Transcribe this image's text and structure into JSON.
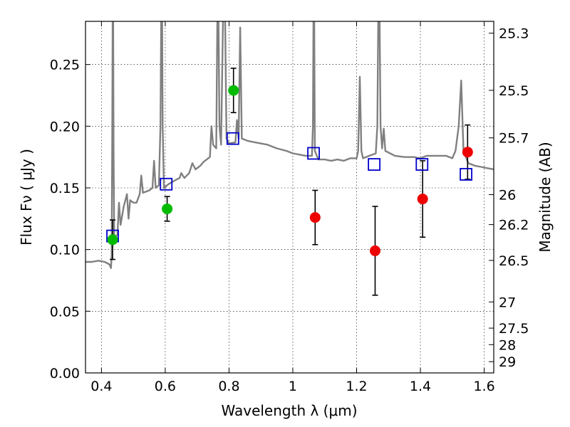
{
  "chart_data": {
    "type": "scatter",
    "xlabel": "Wavelength  λ (μm)",
    "ylabel": "Flux  Fν ( μJy )",
    "ylabel_right": "Magnitude (AB)",
    "xlim": [
      0.35,
      1.63
    ],
    "ylim": [
      0,
      0.285
    ],
    "x_ticks": [
      {
        "value": 0.4,
        "label": "0.4"
      },
      {
        "value": 0.6,
        "label": "0.6"
      },
      {
        "value": 0.8,
        "label": "0.8"
      },
      {
        "value": 1.0,
        "label": "1"
      },
      {
        "value": 1.2,
        "label": "1.2"
      },
      {
        "value": 1.4,
        "label": "1.4"
      },
      {
        "value": 1.6,
        "label": "1.6"
      }
    ],
    "y_ticks": [
      {
        "value": 0.0,
        "label": "0.00"
      },
      {
        "value": 0.05,
        "label": "0.05"
      },
      {
        "value": 0.1,
        "label": "0.10"
      },
      {
        "value": 0.15,
        "label": "0.15"
      },
      {
        "value": 0.2,
        "label": "0.20"
      },
      {
        "value": 0.25,
        "label": "0.25"
      }
    ],
    "right_ticks": [
      {
        "mag": 25.3,
        "label": "25.3"
      },
      {
        "mag": 25.5,
        "label": "25.5"
      },
      {
        "mag": 25.7,
        "label": "25.7"
      },
      {
        "mag": 26.0,
        "label": "26"
      },
      {
        "mag": 26.2,
        "label": "26.2"
      },
      {
        "mag": 26.5,
        "label": "26.5"
      },
      {
        "mag": 27.0,
        "label": "27"
      },
      {
        "mag": 27.5,
        "label": "27.5"
      },
      {
        "mag": 28.0,
        "label": "28"
      },
      {
        "mag": 29.0,
        "label": "29"
      }
    ],
    "grid": true,
    "colors": {
      "spectrum": "#808080",
      "model": "#0000cc",
      "green": "#00bb00",
      "red": "#ee0000",
      "errorbar": "#000000"
    },
    "model_points": [
      {
        "x": 0.435,
        "y": 0.111
      },
      {
        "x": 0.603,
        "y": 0.153
      },
      {
        "x": 0.812,
        "y": 0.19
      },
      {
        "x": 1.065,
        "y": 0.178
      },
      {
        "x": 1.255,
        "y": 0.169
      },
      {
        "x": 1.405,
        "y": 0.169
      },
      {
        "x": 1.543,
        "y": 0.161
      }
    ],
    "green_points": [
      {
        "x": 0.435,
        "y": 0.108,
        "err": 0.016
      },
      {
        "x": 0.606,
        "y": 0.133,
        "err": 0.01
      },
      {
        "x": 0.814,
        "y": 0.229,
        "err": 0.018
      }
    ],
    "red_points": [
      {
        "x": 1.07,
        "y": 0.126,
        "err": 0.022
      },
      {
        "x": 1.258,
        "y": 0.099,
        "err": 0.036
      },
      {
        "x": 1.407,
        "y": 0.141,
        "err": 0.031
      },
      {
        "x": 1.548,
        "y": 0.179,
        "err": 0.022
      }
    ],
    "spectrum": [
      [
        0.35,
        0.09
      ],
      [
        0.37,
        0.09
      ],
      [
        0.39,
        0.091
      ],
      [
        0.41,
        0.09
      ],
      [
        0.425,
        0.088
      ],
      [
        0.43,
        0.085
      ],
      [
        0.432,
        0.095
      ],
      [
        0.434,
        0.2
      ],
      [
        0.436,
        0.35
      ],
      [
        0.438,
        0.18
      ],
      [
        0.44,
        0.11
      ],
      [
        0.45,
        0.112
      ],
      [
        0.455,
        0.138
      ],
      [
        0.46,
        0.12
      ],
      [
        0.47,
        0.135
      ],
      [
        0.48,
        0.145
      ],
      [
        0.485,
        0.125
      ],
      [
        0.49,
        0.14
      ],
      [
        0.5,
        0.138
      ],
      [
        0.51,
        0.138
      ],
      [
        0.52,
        0.145
      ],
      [
        0.525,
        0.16
      ],
      [
        0.53,
        0.146
      ],
      [
        0.55,
        0.148
      ],
      [
        0.56,
        0.15
      ],
      [
        0.565,
        0.172
      ],
      [
        0.57,
        0.15
      ],
      [
        0.58,
        0.152
      ],
      [
        0.585,
        0.2
      ],
      [
        0.589,
        0.35
      ],
      [
        0.592,
        0.2
      ],
      [
        0.596,
        0.15
      ],
      [
        0.61,
        0.153
      ],
      [
        0.63,
        0.156
      ],
      [
        0.645,
        0.158
      ],
      [
        0.65,
        0.162
      ],
      [
        0.66,
        0.158
      ],
      [
        0.675,
        0.162
      ],
      [
        0.685,
        0.17
      ],
      [
        0.695,
        0.165
      ],
      [
        0.71,
        0.168
      ],
      [
        0.72,
        0.171
      ],
      [
        0.73,
        0.173
      ],
      [
        0.74,
        0.175
      ],
      [
        0.745,
        0.2
      ],
      [
        0.75,
        0.185
      ],
      [
        0.76,
        0.182
      ],
      [
        0.765,
        0.34
      ],
      [
        0.77,
        0.2
      ],
      [
        0.775,
        0.185
      ],
      [
        0.785,
        0.35
      ],
      [
        0.792,
        0.19
      ],
      [
        0.8,
        0.186
      ],
      [
        0.82,
        0.187
      ],
      [
        0.825,
        0.205
      ],
      [
        0.83,
        0.19
      ],
      [
        0.835,
        0.28
      ],
      [
        0.84,
        0.19
      ],
      [
        0.86,
        0.188
      ],
      [
        0.88,
        0.187
      ],
      [
        0.9,
        0.186
      ],
      [
        0.92,
        0.185
      ],
      [
        0.95,
        0.182
      ],
      [
        0.98,
        0.18
      ],
      [
        1.0,
        0.178
      ],
      [
        1.02,
        0.177
      ],
      [
        1.04,
        0.176
      ],
      [
        1.06,
        0.176
      ],
      [
        1.063,
        0.2
      ],
      [
        1.066,
        0.35
      ],
      [
        1.069,
        0.18
      ],
      [
        1.08,
        0.173
      ],
      [
        1.1,
        0.173
      ],
      [
        1.12,
        0.172
      ],
      [
        1.14,
        0.173
      ],
      [
        1.16,
        0.172
      ],
      [
        1.18,
        0.174
      ],
      [
        1.2,
        0.174
      ],
      [
        1.205,
        0.18
      ],
      [
        1.21,
        0.24
      ],
      [
        1.215,
        0.18
      ],
      [
        1.22,
        0.174
      ],
      [
        1.24,
        0.176
      ],
      [
        1.26,
        0.178
      ],
      [
        1.265,
        0.2
      ],
      [
        1.27,
        0.35
      ],
      [
        1.275,
        0.2
      ],
      [
        1.28,
        0.182
      ],
      [
        1.285,
        0.198
      ],
      [
        1.29,
        0.18
      ],
      [
        1.32,
        0.176
      ],
      [
        1.35,
        0.175
      ],
      [
        1.38,
        0.175
      ],
      [
        1.4,
        0.174
      ],
      [
        1.42,
        0.176
      ],
      [
        1.45,
        0.176
      ],
      [
        1.48,
        0.176
      ],
      [
        1.5,
        0.174
      ],
      [
        1.51,
        0.18
      ],
      [
        1.52,
        0.2
      ],
      [
        1.528,
        0.237
      ],
      [
        1.535,
        0.18
      ],
      [
        1.55,
        0.17
      ],
      [
        1.57,
        0.168
      ],
      [
        1.59,
        0.167
      ],
      [
        1.61,
        0.166
      ],
      [
        1.63,
        0.165
      ]
    ]
  }
}
